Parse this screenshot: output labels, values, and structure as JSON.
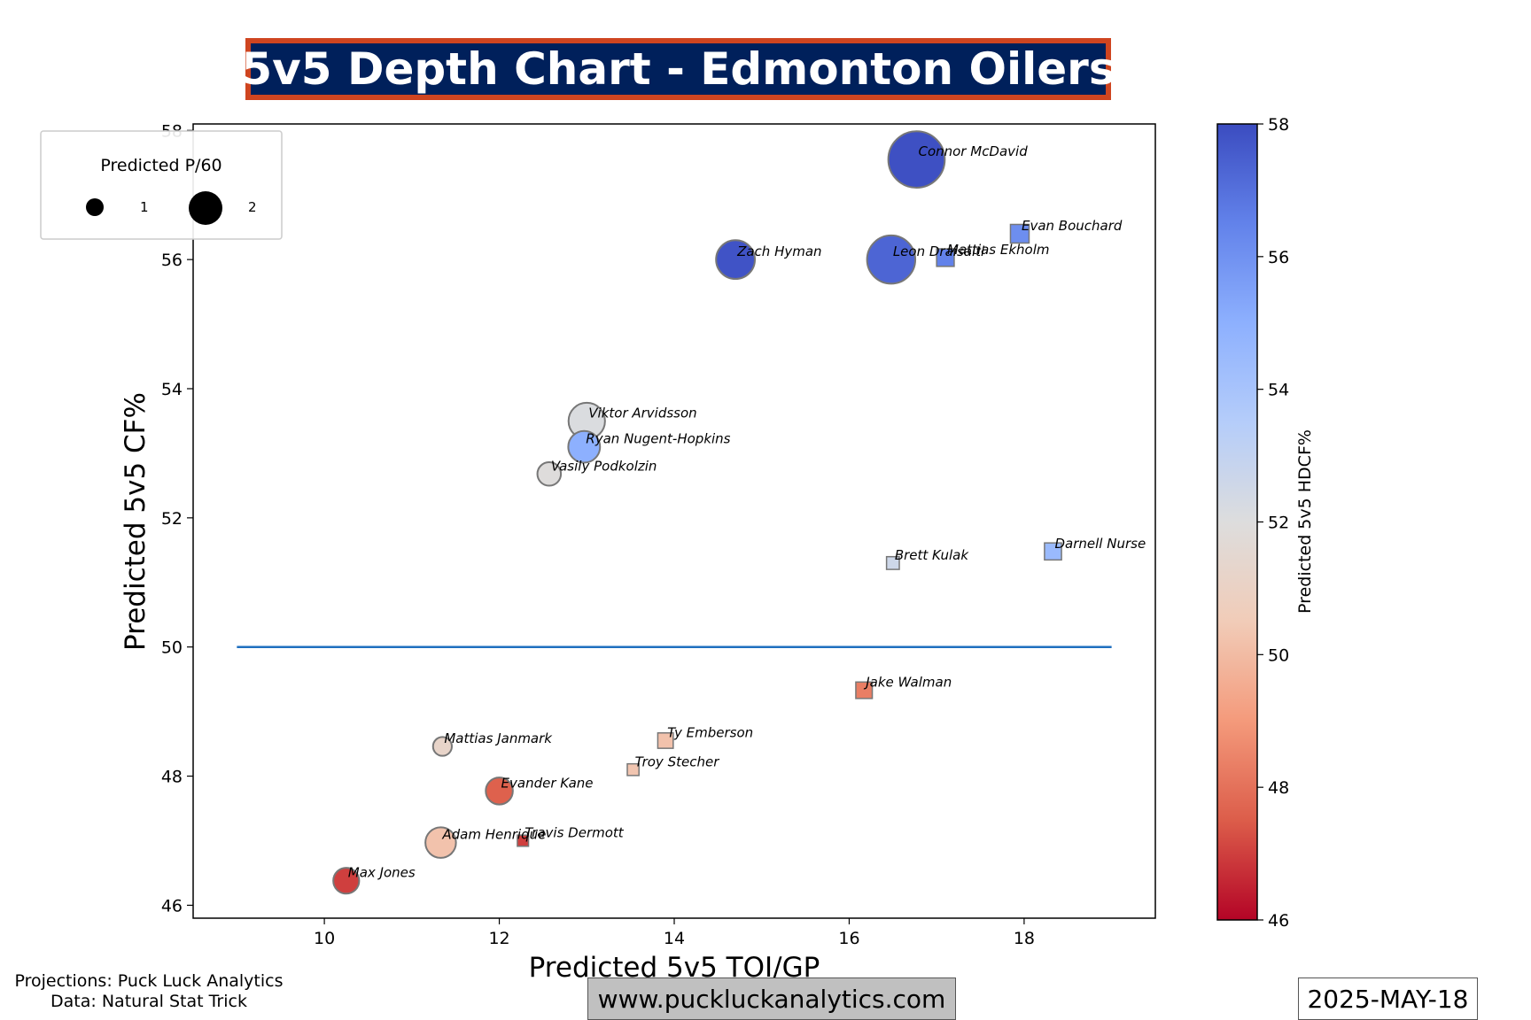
{
  "header": {
    "title": "5v5 Depth Chart - Edmonton Oilers"
  },
  "footer": {
    "credit_line1": "Projections: Puck Luck Analytics",
    "credit_line2": "Data: Natural Stat Trick",
    "website": "www.puckluckanalytics.com",
    "date": "2025-MAY-18"
  },
  "legend": {
    "title": "Predicted P/60",
    "entries": [
      {
        "label": "1",
        "value": 1
      },
      {
        "label": "2",
        "value": 2
      }
    ]
  },
  "colorbar": {
    "label": "Predicted 5v5 HDCF%",
    "ticks": [
      "46",
      "48",
      "50",
      "52",
      "54",
      "56",
      "58"
    ],
    "range": [
      46,
      58
    ],
    "colormap": "coolwarm_r",
    "low_color": "#b40426",
    "mid_color": "#dddddd",
    "high_color": "#3b4cc0"
  },
  "chart_data": {
    "type": "scatter",
    "xlabel": "Predicted 5v5 TOI/GP",
    "ylabel": "Predicted 5v5 CF%",
    "xlim": [
      8.5,
      19.5
    ],
    "ylim": [
      45.8,
      58.1
    ],
    "x_ticks": [
      "10",
      "12",
      "14",
      "16",
      "18"
    ],
    "y_ticks": [
      "46",
      "48",
      "50",
      "52",
      "54",
      "56",
      "58"
    ],
    "reference_line": {
      "y": 50,
      "x_from": 9,
      "x_to": 19,
      "color": "#1f6fbf"
    },
    "marker_legend": {
      "circle": "forward",
      "square": "defense"
    },
    "series": [
      {
        "name": "Connor McDavid",
        "position": "F",
        "x": 16.77,
        "y": 57.55,
        "p60": 2.4,
        "hdcf": 57.9
      },
      {
        "name": "Leon Draisaitl",
        "position": "F",
        "x": 16.48,
        "y": 56.0,
        "p60": 2.05,
        "hdcf": 57.3
      },
      {
        "name": "Zach Hyman",
        "position": "F",
        "x": 14.7,
        "y": 56.0,
        "p60": 1.65,
        "hdcf": 57.8
      },
      {
        "name": "Viktor Arvidsson",
        "position": "F",
        "x": 13.0,
        "y": 53.5,
        "p60": 1.55,
        "hdcf": 52.1
      },
      {
        "name": "Ryan Nugent-Hopkins",
        "position": "F",
        "x": 12.97,
        "y": 53.1,
        "p60": 1.35,
        "hdcf": 55.0
      },
      {
        "name": "Vasily Podkolzin",
        "position": "F",
        "x": 12.57,
        "y": 52.68,
        "p60": 1.0,
        "hdcf": 51.9
      },
      {
        "name": "Mattias Janmark",
        "position": "F",
        "x": 11.35,
        "y": 48.46,
        "p60": 0.8,
        "hdcf": 51.2
      },
      {
        "name": "Evander Kane",
        "position": "F",
        "x": 12.0,
        "y": 47.77,
        "p60": 1.15,
        "hdcf": 47.6
      },
      {
        "name": "Adam Henrique",
        "position": "F",
        "x": 11.33,
        "y": 46.97,
        "p60": 1.3,
        "hdcf": 50.2
      },
      {
        "name": "Max Jones",
        "position": "F",
        "x": 10.25,
        "y": 46.38,
        "p60": 1.1,
        "hdcf": 47.0
      },
      {
        "name": "Evan Bouchard",
        "position": "D",
        "x": 17.95,
        "y": 56.4,
        "p60": 1.25,
        "hdcf": 56.1
      },
      {
        "name": "Mattias Ekholm",
        "position": "D",
        "x": 17.1,
        "y": 56.03,
        "p60": 1.15,
        "hdcf": 56.5
      },
      {
        "name": "Darnell Nurse",
        "position": "D",
        "x": 18.33,
        "y": 51.48,
        "p60": 1.1,
        "hdcf": 54.5
      },
      {
        "name": "Brett Kulak",
        "position": "D",
        "x": 16.5,
        "y": 51.3,
        "p60": 0.7,
        "hdcf": 52.6
      },
      {
        "name": "Jake Walman",
        "position": "D",
        "x": 16.17,
        "y": 49.33,
        "p60": 1.05,
        "hdcf": 48.3
      },
      {
        "name": "Ty Emberson",
        "position": "D",
        "x": 13.9,
        "y": 48.55,
        "p60": 0.95,
        "hdcf": 50.2
      },
      {
        "name": "Troy Stecher",
        "position": "D",
        "x": 13.53,
        "y": 48.1,
        "p60": 0.6,
        "hdcf": 50.3
      },
      {
        "name": "Travis Dermott",
        "position": "D",
        "x": 12.27,
        "y": 47.0,
        "p60": 0.55,
        "hdcf": 47.0
      }
    ]
  }
}
